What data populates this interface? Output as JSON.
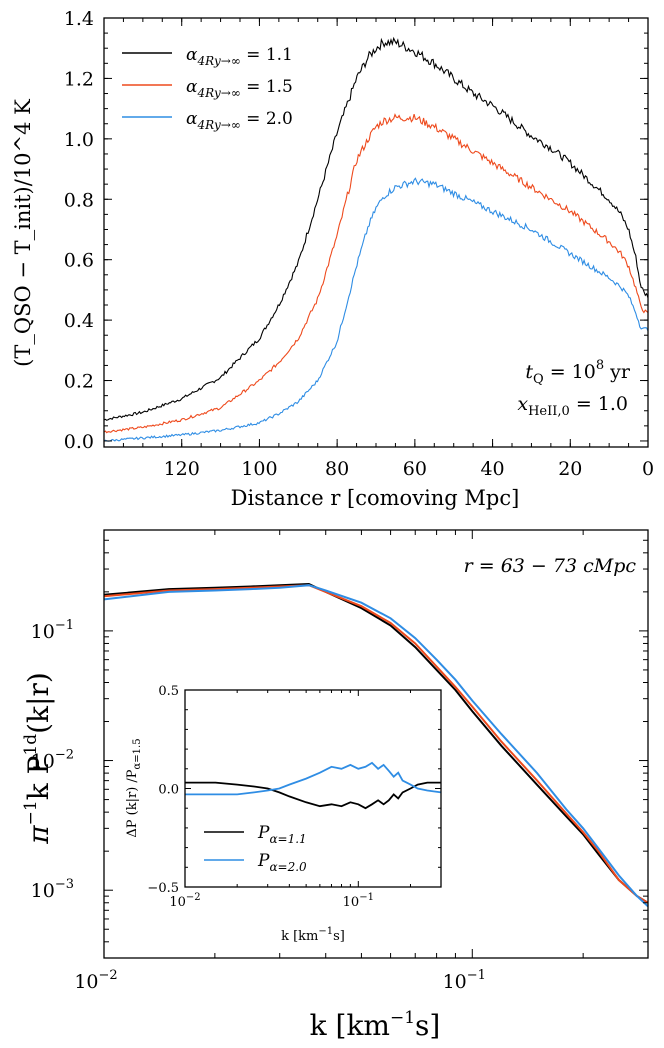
{
  "colors": {
    "a11": "#000000",
    "a15": "#ee4a1d",
    "a20": "#2f8de4"
  },
  "chart_data": [
    {
      "type": "line",
      "xlabel": "Distance r  [comoving Mpc]",
      "ylabel": "(T_QSO − T_init)/10^4 K",
      "xlim": [
        140,
        0
      ],
      "ylim": [
        -0.02,
        1.4
      ],
      "x_ticks": [
        "120",
        "100",
        "80",
        "60",
        "40",
        "20",
        "0"
      ],
      "y_ticks": [
        "0.0",
        "0.2",
        "0.4",
        "0.6",
        "0.8",
        "1.0",
        "1.2",
        "1.4"
      ],
      "x": [
        140,
        130,
        120,
        110,
        100,
        95,
        90,
        85,
        80,
        75,
        72,
        70,
        68,
        65,
        60,
        55,
        50,
        45,
        40,
        35,
        30,
        25,
        20,
        15,
        10,
        7,
        5,
        3,
        2,
        1,
        0
      ],
      "series": [
        {
          "name": "α_{4Ry→∞} = 1.1",
          "legend_lhs": "α",
          "legend_sub": "4Ry→∞",
          "legend_rhs": " = 1.1",
          "color_key": "a11",
          "values": [
            0.07,
            0.095,
            0.14,
            0.21,
            0.34,
            0.45,
            0.59,
            0.8,
            1.02,
            1.2,
            1.27,
            1.3,
            1.32,
            1.32,
            1.29,
            1.25,
            1.2,
            1.15,
            1.11,
            1.06,
            1.01,
            0.97,
            0.92,
            0.86,
            0.8,
            0.75,
            0.7,
            0.6,
            0.52,
            0.49,
            0.48
          ]
        },
        {
          "name": "α_{4Ry→∞} = 1.5",
          "legend_lhs": "α",
          "legend_sub": "4Ry→∞",
          "legend_rhs": " = 1.5",
          "color_key": "a15",
          "values": [
            0.03,
            0.045,
            0.07,
            0.11,
            0.2,
            0.26,
            0.34,
            0.47,
            0.68,
            0.93,
            1.0,
            1.04,
            1.06,
            1.07,
            1.07,
            1.04,
            1.0,
            0.96,
            0.92,
            0.88,
            0.84,
            0.8,
            0.76,
            0.71,
            0.66,
            0.62,
            0.58,
            0.5,
            0.45,
            0.43,
            0.42
          ]
        },
        {
          "name": "α_{4Ry→∞} = 2.0",
          "legend_lhs": "α",
          "legend_sub": "4Ry→∞",
          "legend_rhs": " = 2.0",
          "color_key": "a20",
          "values": [
            0.0,
            0.01,
            0.02,
            0.035,
            0.06,
            0.09,
            0.13,
            0.2,
            0.33,
            0.58,
            0.71,
            0.77,
            0.81,
            0.84,
            0.86,
            0.85,
            0.82,
            0.79,
            0.76,
            0.73,
            0.7,
            0.66,
            0.62,
            0.58,
            0.54,
            0.51,
            0.48,
            0.42,
            0.38,
            0.37,
            0.37
          ]
        }
      ],
      "annotations": [
        {
          "lhs": "t",
          "sub": "Q",
          "rhs": " = 10",
          "sup": "8",
          "tail": " yr"
        },
        {
          "lhs": "x",
          "sub": "HeII,0",
          "rhs": " = 1.0",
          "sup": "",
          "tail": ""
        }
      ]
    },
    {
      "type": "line",
      "xscale": "log",
      "yscale": "log",
      "xlabel_a": "k  [km",
      "xlabel_sup": "−1",
      "xlabel_b": "s]",
      "ylabel_a": "π",
      "ylabel_sup1": "−1",
      "ylabel_b": "k P",
      "ylabel_sup2": "1d",
      "ylabel_c": "(k|r)",
      "xlim": [
        0.01,
        0.3
      ],
      "ylim": [
        0.0003,
        0.6
      ],
      "x_tick_base": "10",
      "x_ticks": [
        {
          "v": 0.01,
          "exp": "−2"
        },
        {
          "v": 0.1,
          "exp": "−1"
        }
      ],
      "y_ticks": [
        {
          "v": 0.001,
          "exp": "−3"
        },
        {
          "v": 0.01,
          "exp": "−2"
        },
        {
          "v": 0.1,
          "exp": "−1"
        }
      ],
      "annotation": "r = 63 − 73 cMpc",
      "x": [
        0.01,
        0.015,
        0.02,
        0.025,
        0.03,
        0.036,
        0.04,
        0.05,
        0.06,
        0.07,
        0.08,
        0.09,
        0.1,
        0.12,
        0.15,
        0.18,
        0.2,
        0.22,
        0.25,
        0.28,
        0.3
      ],
      "series": [
        {
          "name": "α = 1.1",
          "color_key": "a11",
          "values": [
            0.19,
            0.21,
            0.215,
            0.22,
            0.225,
            0.23,
            0.2,
            0.15,
            0.11,
            0.075,
            0.05,
            0.035,
            0.024,
            0.013,
            0.0065,
            0.0037,
            0.0027,
            0.0019,
            0.0012,
            0.0009,
            0.0008
          ]
        },
        {
          "name": "α = 1.5",
          "color_key": "a15",
          "values": [
            0.185,
            0.205,
            0.21,
            0.215,
            0.22,
            0.225,
            0.2,
            0.155,
            0.115,
            0.08,
            0.053,
            0.037,
            0.026,
            0.014,
            0.007,
            0.0039,
            0.0028,
            0.002,
            0.0012,
            0.0009,
            0.0008
          ]
        },
        {
          "name": "α = 2.0",
          "color_key": "a20",
          "values": [
            0.175,
            0.2,
            0.205,
            0.21,
            0.215,
            0.225,
            0.205,
            0.165,
            0.125,
            0.088,
            0.06,
            0.042,
            0.029,
            0.016,
            0.008,
            0.0042,
            0.003,
            0.0021,
            0.0013,
            0.0009,
            0.00075
          ]
        }
      ],
      "inset": {
        "xscale": "log",
        "xlim": [
          0.01,
          0.3
        ],
        "ylim": [
          -0.5,
          0.5
        ],
        "xlabel_a": "k  [km",
        "xlabel_sup": "−1",
        "xlabel_b": "s]",
        "ylabel_a": "ΔP (k|r) /P",
        "ylabel_sub": "α=1.5",
        "x_ticks": [
          {
            "v": 0.01,
            "exp": "−2"
          },
          {
            "v": 0.1,
            "exp": "−1"
          }
        ],
        "y_ticks": [
          "0.5",
          "0.0",
          "−0.5"
        ],
        "x": [
          0.01,
          0.015,
          0.02,
          0.025,
          0.03,
          0.035,
          0.04,
          0.05,
          0.06,
          0.07,
          0.08,
          0.09,
          0.1,
          0.11,
          0.12,
          0.13,
          0.14,
          0.15,
          0.16,
          0.17,
          0.18,
          0.2,
          0.22,
          0.25,
          0.3
        ],
        "series": [
          {
            "name": "P_{α=1.1}",
            "legend_lhs": "P",
            "legend_sub": "α=1.1",
            "color_key": "a11",
            "values": [
              0.03,
              0.03,
              0.02,
              0.01,
              0.0,
              -0.02,
              -0.04,
              -0.07,
              -0.09,
              -0.08,
              -0.09,
              -0.07,
              -0.08,
              -0.1,
              -0.08,
              -0.06,
              -0.08,
              -0.06,
              -0.03,
              -0.05,
              -0.02,
              0.0,
              0.02,
              0.03,
              0.03
            ]
          },
          {
            "name": "P_{α=2.0}",
            "legend_lhs": "P",
            "legend_sub": "α=2.0",
            "color_key": "a20",
            "values": [
              -0.03,
              -0.03,
              -0.03,
              -0.02,
              -0.01,
              0.0,
              0.02,
              0.05,
              0.08,
              0.11,
              0.1,
              0.12,
              0.1,
              0.11,
              0.13,
              0.1,
              0.12,
              0.09,
              0.06,
              0.08,
              0.04,
              0.02,
              0.0,
              -0.01,
              -0.02
            ]
          }
        ]
      }
    }
  ]
}
